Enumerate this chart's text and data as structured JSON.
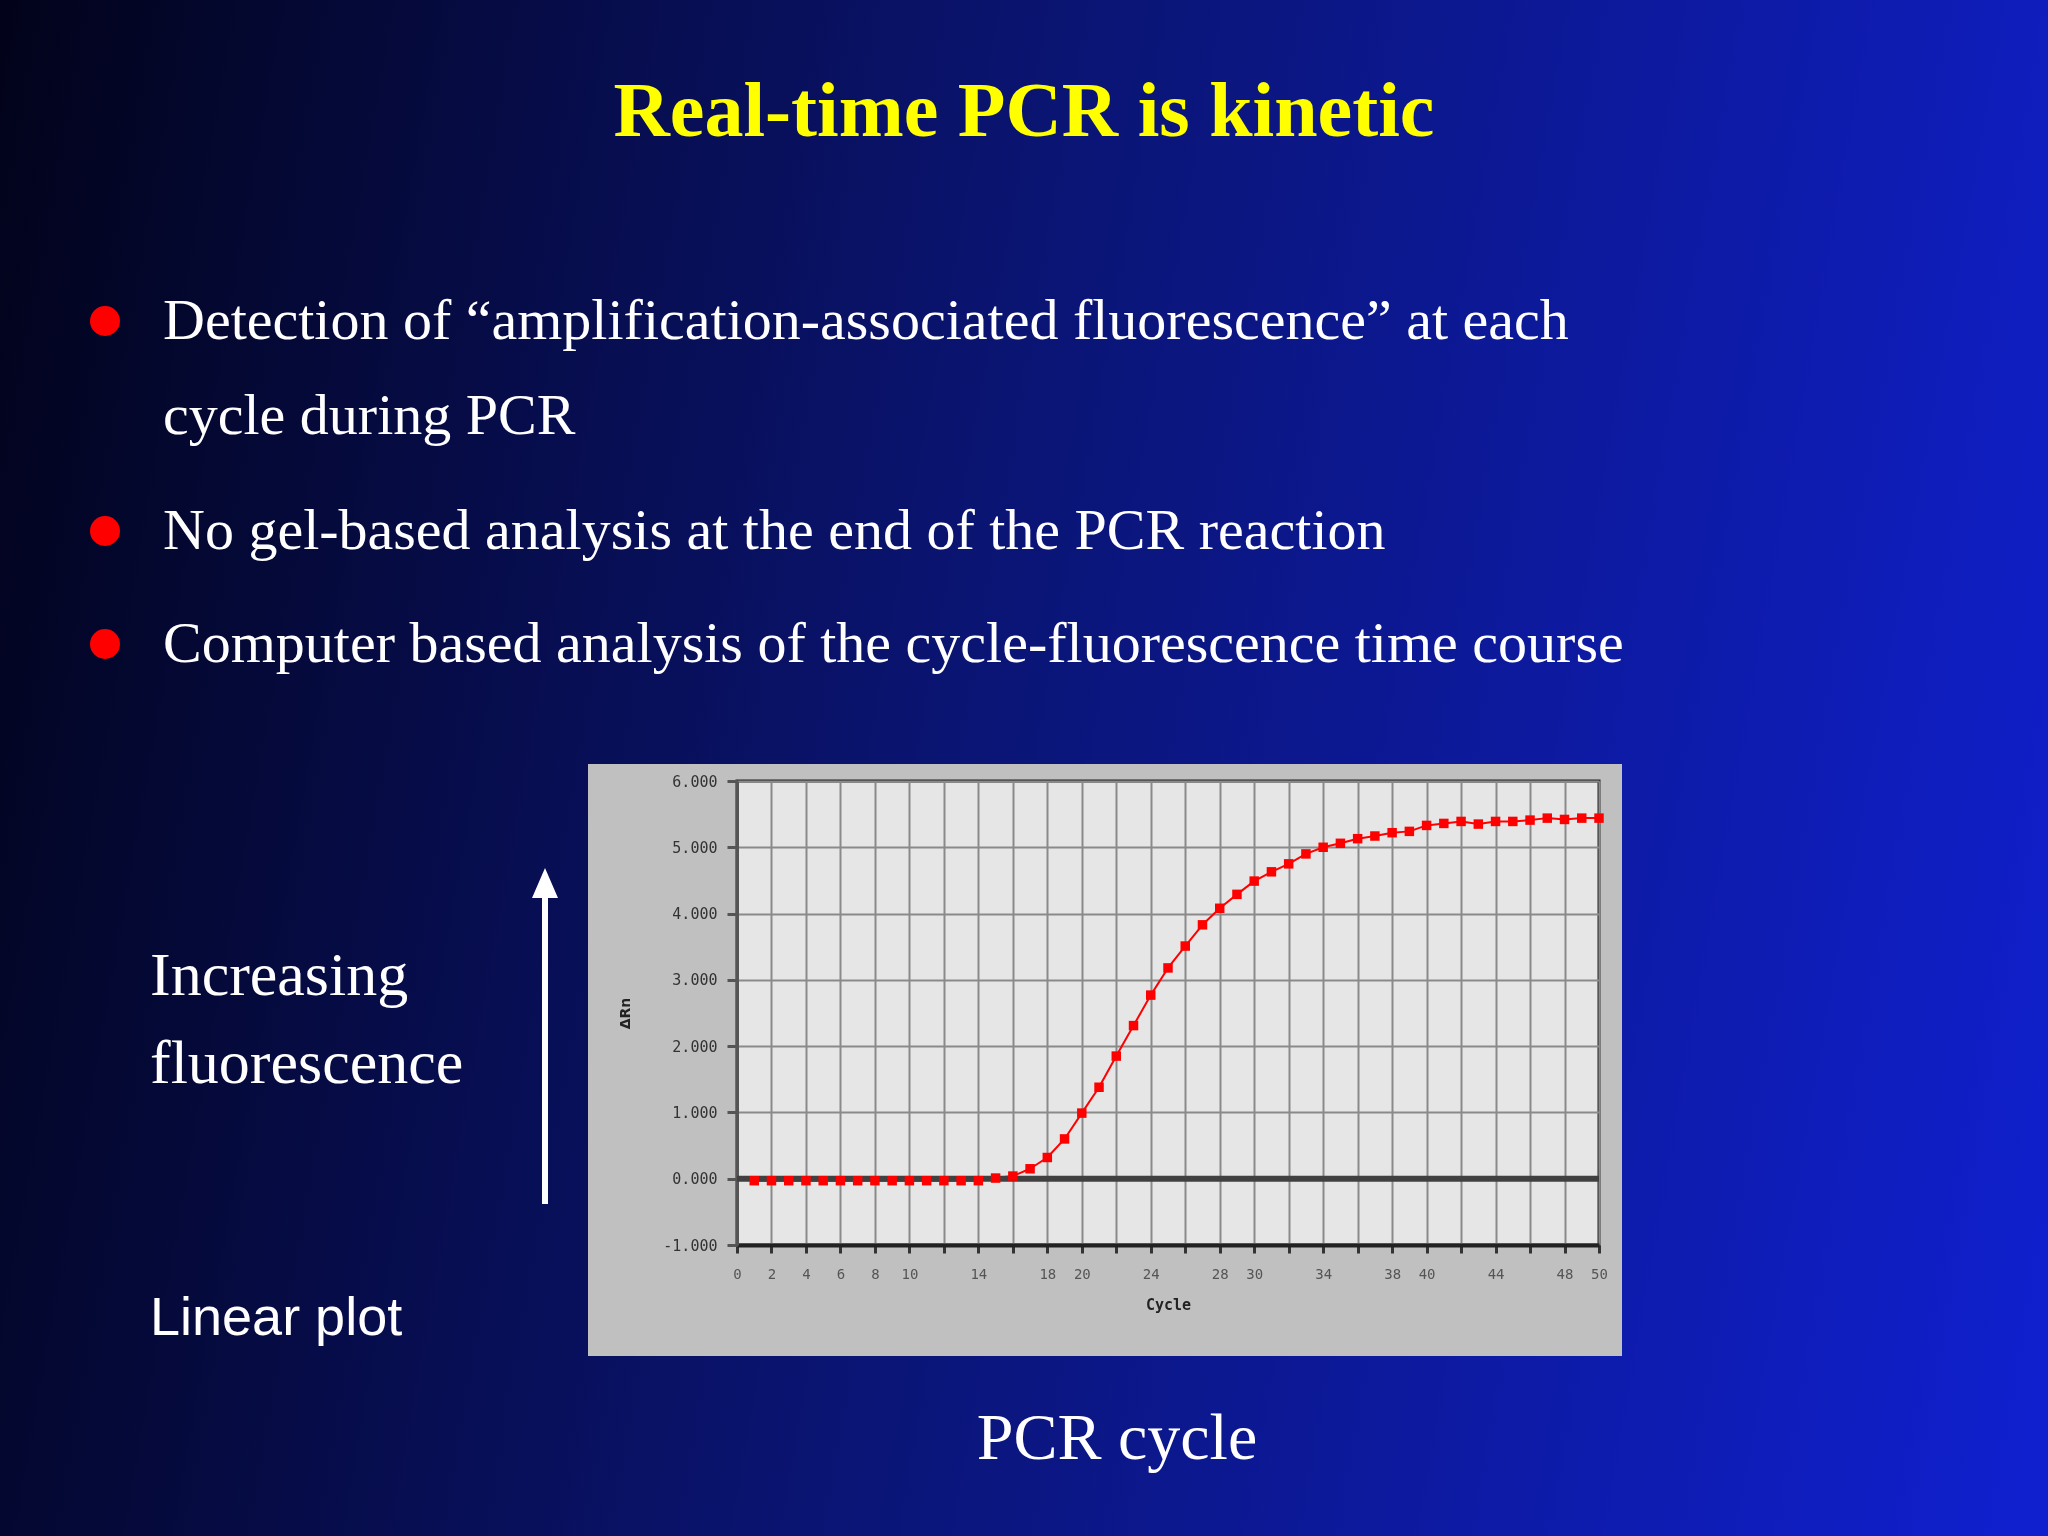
{
  "chart_data": {
    "type": "line",
    "title": "Real-time PCR is kinetic",
    "xlabel": "Cycle",
    "ylabel": "ΔRn",
    "annotations": [
      "Detection of “amplification-associated fluorescence” at each cycle during PCR",
      "No gel-based analysis at the end of the PCR reaction",
      "Computer based analysis of the cycle-fluorescence time course",
      "Increasing fluorescence",
      "Linear plot",
      "PCR cycle"
    ],
    "x": [
      1,
      2,
      3,
      4,
      5,
      6,
      7,
      8,
      9,
      10,
      11,
      12,
      13,
      14,
      15,
      16,
      17,
      18,
      19,
      20,
      21,
      22,
      23,
      24,
      25,
      26,
      27,
      28,
      29,
      30,
      31,
      32,
      33,
      34,
      35,
      36,
      37,
      38,
      39,
      40,
      41,
      42,
      43,
      44,
      45,
      46,
      47,
      48,
      49,
      50
    ],
    "series": [
      {
        "color": "#ff0000",
        "values": [
          -0.03,
          -0.03,
          -0.03,
          -0.03,
          -0.03,
          -0.03,
          -0.03,
          -0.03,
          -0.03,
          -0.03,
          -0.03,
          -0.03,
          -0.03,
          -0.03,
          0.01,
          0.04,
          0.15,
          0.32,
          0.6,
          0.99,
          1.38,
          1.85,
          2.31,
          2.77,
          3.18,
          3.51,
          3.83,
          4.08,
          4.29,
          4.49,
          4.63,
          4.75,
          4.9,
          5.0,
          5.06,
          5.13,
          5.17,
          5.22,
          5.24,
          5.33,
          5.36,
          5.39,
          5.35,
          5.39,
          5.39,
          5.41,
          5.44,
          5.42,
          5.44,
          5.44
        ]
      }
    ],
    "xlim": [
      0,
      50
    ],
    "xticks": [
      0,
      2,
      4,
      6,
      8,
      10,
      {
        "value": 12,
        "label": null
      },
      14,
      {
        "value": 16,
        "label": null
      },
      18,
      20,
      {
        "value": 22,
        "label": null
      },
      24,
      {
        "value": 26,
        "label": null
      },
      28,
      30,
      {
        "value": 32,
        "label": null
      },
      34,
      {
        "value": 36,
        "label": null
      },
      38,
      40,
      {
        "value": 42,
        "label": null
      },
      44,
      {
        "value": 46,
        "label": null
      },
      48,
      50
    ],
    "ylim": [
      -1,
      6
    ],
    "yticks": [
      {
        "value": -1,
        "label": "-1.000"
      },
      {
        "value": 0,
        "label": "0.000"
      },
      {
        "value": 1,
        "label": "1.000"
      },
      {
        "value": 2,
        "label": "2.000"
      },
      {
        "value": 3,
        "label": "3.000"
      },
      {
        "value": 4,
        "label": "4.000"
      },
      {
        "value": 5,
        "label": "5.000"
      },
      {
        "value": 6,
        "label": "6.000"
      }
    ],
    "ref_lines": [
      {
        "axis": "y",
        "value": 0,
        "color": "#404040"
      }
    ],
    "grid": true,
    "marker": "square",
    "line_style": "solid"
  }
}
